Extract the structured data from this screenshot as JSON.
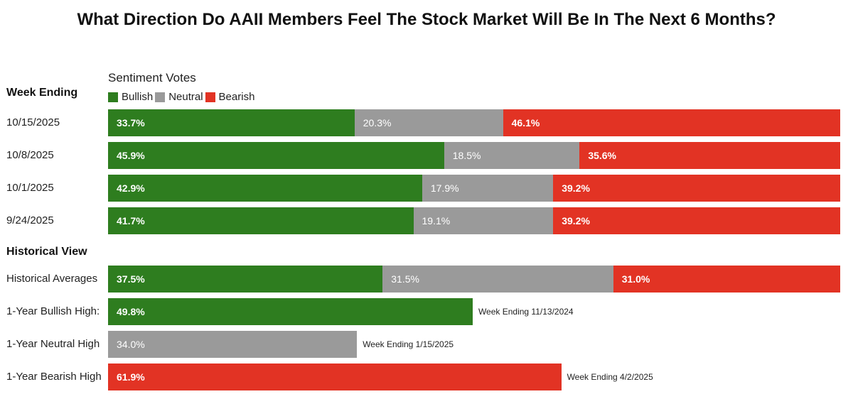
{
  "colors": {
    "bullish": "#2e7d1f",
    "neutral": "#9a9a9a",
    "bearish": "#e23324"
  },
  "chart_data": {
    "type": "bar",
    "orientation": "horizontal-stacked",
    "title": "What Direction Do AAII Members Feel The Stock Market Will Be In The Next 6 Months?",
    "legend_title": "Sentiment Votes",
    "legend": [
      "Bullish",
      "Neutral",
      "Bearish"
    ],
    "week_header": "Week Ending",
    "historical_header": "Historical View",
    "weeks": [
      {
        "label": "10/15/2025",
        "bullish": 33.7,
        "neutral": 20.3,
        "bearish": 46.1,
        "texts": {
          "bullish": "33.7%",
          "neutral": "20.3%",
          "bearish": "46.1%"
        }
      },
      {
        "label": "10/8/2025",
        "bullish": 45.9,
        "neutral": 18.5,
        "bearish": 35.6,
        "texts": {
          "bullish": "45.9%",
          "neutral": "18.5%",
          "bearish": "35.6%"
        }
      },
      {
        "label": "10/1/2025",
        "bullish": 42.9,
        "neutral": 17.9,
        "bearish": 39.2,
        "texts": {
          "bullish": "42.9%",
          "neutral": "17.9%",
          "bearish": "39.2%"
        }
      },
      {
        "label": "9/24/2025",
        "bullish": 41.7,
        "neutral": 19.1,
        "bearish": 39.2,
        "texts": {
          "bullish": "41.7%",
          "neutral": "19.1%",
          "bearish": "39.2%"
        }
      }
    ],
    "historical_averages": {
      "label": "Historical Averages",
      "bullish": 37.5,
      "neutral": 31.5,
      "bearish": 31.0,
      "texts": {
        "bullish": "37.5%",
        "neutral": "31.5%",
        "bearish": "31.0%"
      }
    },
    "highs": [
      {
        "label": "1-Year Bullish High:",
        "kind": "bullish",
        "value": 49.8,
        "text": "49.8%",
        "note": "Week Ending 11/13/2024"
      },
      {
        "label": "1-Year Neutral High",
        "kind": "neutral",
        "value": 34.0,
        "text": "34.0%",
        "note": "Week Ending 1/15/2025"
      },
      {
        "label": "1-Year Bearish High",
        "kind": "bearish",
        "value": 61.9,
        "text": "61.9%",
        "note": "Week Ending 4/2/2025"
      }
    ]
  }
}
